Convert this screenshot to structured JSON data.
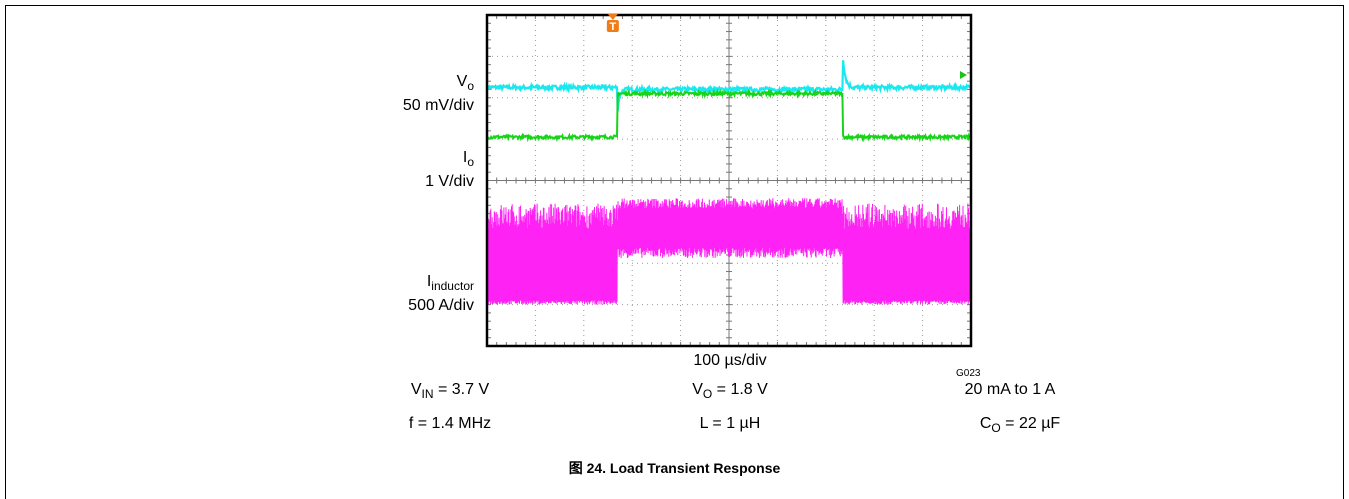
{
  "chart_data": {
    "type": "line",
    "title": "",
    "xlabel": "100 µs/div",
    "ylabel": "",
    "grid": true,
    "divisions": {
      "x": 10,
      "y": 8
    },
    "channels": [
      {
        "name": "V",
        "name_sub": "o",
        "scale": "50 mV/div",
        "color": "#19e8f0",
        "baseline_div": 6.25,
        "step_div": -0.05,
        "transient_div": 0.8,
        "noise_div": 0.05
      },
      {
        "name": "I",
        "name_sub": "o",
        "scale": "1 V/div",
        "color": "#18d418",
        "baseline_div": 5.05,
        "step_div": 1.05,
        "transient_div": 0,
        "noise_div": 0.04
      },
      {
        "name": "I",
        "name_sub": "inductor",
        "scale": "500 A/div",
        "color": "#ff22f4",
        "baseline_div": 1.0,
        "step_div": 1.2,
        "switching_high_div": 2.45,
        "noise_div": 0.25
      }
    ],
    "load_step": {
      "start_div": 2.7,
      "end_div": 7.35
    },
    "trigger_marker": "T"
  },
  "conditions": {
    "vin_label": "V",
    "vin_sub": "IN",
    "vin_value": " = 3.7 V",
    "vo_label": "V",
    "vo_sub": "O",
    "vo_value": " = 1.8 V",
    "load": "20 mA to 1 A",
    "freq": "f = 1.4 MHz",
    "inductance": "L = 1 µH",
    "co_label": "C",
    "co_sub": "O",
    "co_value": " = 22 µF"
  },
  "graph_code": "G023",
  "caption": "图 24. Load Transient Response"
}
